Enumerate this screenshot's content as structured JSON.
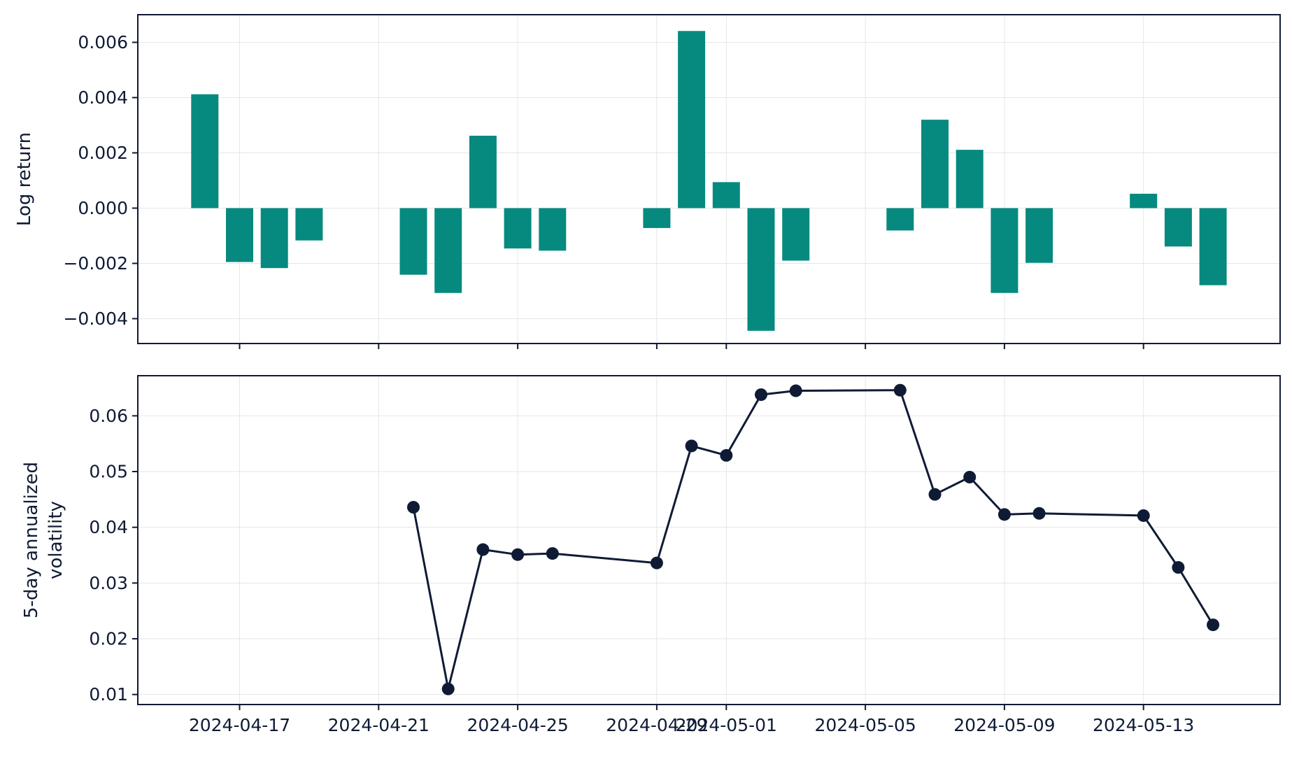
{
  "chart_data": [
    {
      "type": "bar",
      "title": "",
      "xlabel": "",
      "ylabel": "Log return",
      "ylim": [
        -0.0049,
        0.007
      ],
      "grid": true,
      "color": "#068a7f",
      "x_tick_labels": [
        "2024-04-17",
        "2024-04-21",
        "2024-04-25",
        "2024-04-29",
        "2024-05-01",
        "2024-05-05",
        "2024-05-09",
        "2024-05-13"
      ],
      "y_ticks": [
        -0.004,
        -0.002,
        0.0,
        0.002,
        0.004,
        0.006
      ],
      "y_tick_labels": [
        "−0.004",
        "−0.002",
        "0.000",
        "0.002",
        "0.004",
        "0.006"
      ],
      "x": [
        "2024-04-16",
        "2024-04-17",
        "2024-04-18",
        "2024-04-19",
        "2024-04-22",
        "2024-04-23",
        "2024-04-24",
        "2024-04-25",
        "2024-04-26",
        "2024-04-29",
        "2024-04-30",
        "2024-05-01",
        "2024-05-02",
        "2024-05-03",
        "2024-05-06",
        "2024-05-07",
        "2024-05-08",
        "2024-05-09",
        "2024-05-10",
        "2024-05-13",
        "2024-05-14",
        "2024-05-15"
      ],
      "values": [
        0.00412,
        -0.00195,
        -0.00217,
        -0.00117,
        -0.00241,
        -0.00307,
        0.00262,
        -0.00146,
        -0.00154,
        -0.00072,
        0.00641,
        0.00094,
        -0.00444,
        -0.0019,
        -0.00081,
        0.0032,
        0.00211,
        -0.00307,
        -0.00198,
        0.00052,
        -0.00139,
        -0.00279
      ]
    },
    {
      "type": "line",
      "title": "",
      "xlabel": "",
      "ylabel": [
        "5-day annualized",
        "volatility"
      ],
      "ylim": [
        0.0082,
        0.0672
      ],
      "grid": true,
      "color": "#0f1b35",
      "x_tick_labels": [
        "2024-04-17",
        "2024-04-21",
        "2024-04-25",
        "2024-04-29",
        "2024-05-01",
        "2024-05-05",
        "2024-05-09",
        "2024-05-13"
      ],
      "y_ticks": [
        0.01,
        0.02,
        0.03,
        0.04,
        0.05,
        0.06
      ],
      "y_tick_labels": [
        "0.01",
        "0.02",
        "0.03",
        "0.04",
        "0.05",
        "0.06"
      ],
      "x": [
        "2024-04-22",
        "2024-04-23",
        "2024-04-24",
        "2024-04-25",
        "2024-04-26",
        "2024-04-29",
        "2024-04-30",
        "2024-05-01",
        "2024-05-02",
        "2024-05-03",
        "2024-05-06",
        "2024-05-07",
        "2024-05-08",
        "2024-05-09",
        "2024-05-10",
        "2024-05-13",
        "2024-05-14",
        "2024-05-15"
      ],
      "values": [
        0.0436,
        0.011,
        0.036,
        0.0351,
        0.0353,
        0.0336,
        0.0546,
        0.0529,
        0.0638,
        0.0645,
        0.0646,
        0.0459,
        0.049,
        0.0423,
        0.0425,
        0.0421,
        0.0328,
        0.0225
      ]
    }
  ]
}
